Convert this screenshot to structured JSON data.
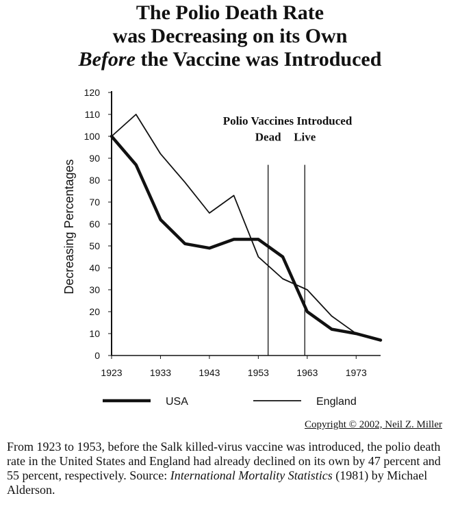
{
  "title": {
    "line1": "The Polio Death Rate",
    "line2": "was Decreasing on its Own",
    "line3_emphasis": "Before",
    "line3_rest": " the Vaccine was Introduced"
  },
  "chart_data": {
    "type": "line",
    "ylabel": "Decreasing Percentages",
    "ylim": [
      0,
      120
    ],
    "yticks": [
      0,
      10,
      20,
      30,
      40,
      50,
      60,
      70,
      80,
      90,
      100,
      110,
      120
    ],
    "xlim": [
      1923,
      1978
    ],
    "xticks": [
      1923,
      1933,
      1943,
      1953,
      1963,
      1973
    ],
    "grid": false,
    "legend_position": "bottom",
    "series": [
      {
        "name": "USA",
        "style": "thick",
        "color": "#111111",
        "x": [
          1923,
          1928,
          1933,
          1938,
          1943,
          1948,
          1953,
          1958,
          1963,
          1968,
          1973,
          1978
        ],
        "y": [
          100,
          87,
          62,
          51,
          49,
          53,
          53,
          45,
          20,
          12,
          10,
          7
        ]
      },
      {
        "name": "England",
        "style": "thin",
        "color": "#111111",
        "x": [
          1923,
          1928,
          1933,
          1938,
          1943,
          1948,
          1953,
          1958,
          1963,
          1968,
          1973,
          1978
        ],
        "y": [
          100,
          110,
          92,
          79,
          65,
          73,
          45,
          35,
          30,
          18,
          10,
          7
        ]
      }
    ],
    "annotations": {
      "heading": "Polio Vaccines Introduced",
      "markers": [
        {
          "label": "Dead",
          "x": 1955
        },
        {
          "label": "Live",
          "x": 1962.5
        }
      ]
    }
  },
  "copyright": "Copyright © 2002, Neil Z. Miller",
  "caption": {
    "part1": "From 1923 to 1953, before the Salk killed-virus vaccine was introduced, the polio death rate in the United States and England had already declined on its own by 47 percent and 55 percent, respectively. Source: ",
    "source_title": "International Mortality Statistics",
    "part2": " (1981) by Michael Alderson."
  }
}
